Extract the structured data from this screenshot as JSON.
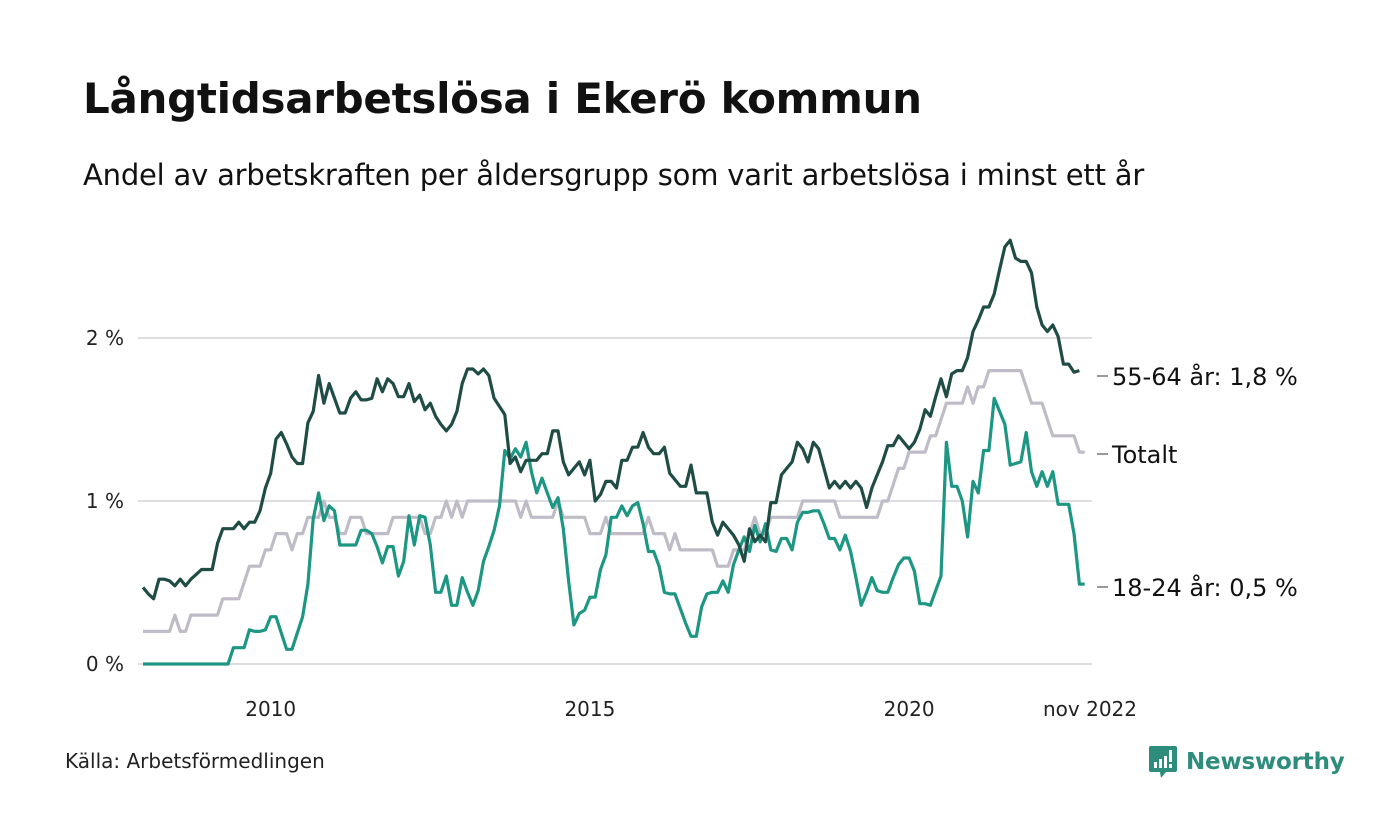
{
  "title": "Långtidsarbetslösa i Ekerö kommun",
  "subtitle": "Andel av arbetskraften per åldersgrupp som varit arbetslösa i minst ett år",
  "source": "Källa: Arbetsförmedlingen",
  "brand": {
    "name": "Newsworthy",
    "icon": "newsworthy-logo-icon",
    "color": "#2e8c7c"
  },
  "chart_data": {
    "type": "line",
    "title": "Långtidsarbetslösa i Ekerö kommun",
    "subtitle": "Andel av arbetskraften per åldersgrupp som varit arbetslösa i minst ett år",
    "xlabel": "",
    "ylabel": "",
    "x_start": "2008-01",
    "x_end": "2022-11",
    "x_frequency": "monthly",
    "xticks": [
      {
        "label": "2010",
        "x": "2010-01"
      },
      {
        "label": "2015",
        "x": "2015-01"
      },
      {
        "label": "2020",
        "x": "2020-01"
      },
      {
        "label": "nov 2022",
        "x": "2022-11"
      }
    ],
    "yticks": [
      {
        "label": "0 %",
        "value": 0
      },
      {
        "label": "1 %",
        "value": 1
      },
      {
        "label": "2 %",
        "value": 2
      }
    ],
    "ylim": [
      0,
      2.65
    ],
    "grid": true,
    "legend": "end-labels-right",
    "series": [
      {
        "name": "55-64 år",
        "end_label": "55-64 år: 1,8 %",
        "color": "#1f4d45",
        "values": [
          0.47,
          0.43,
          0.4,
          0.52,
          0.52,
          0.51,
          0.48,
          0.52,
          0.48,
          0.52,
          0.55,
          0.58,
          0.58,
          0.58,
          0.74,
          0.83,
          0.83,
          0.83,
          0.87,
          0.83,
          0.87,
          0.87,
          0.94,
          1.08,
          1.17,
          1.38,
          1.42,
          1.35,
          1.27,
          1.23,
          1.23,
          1.48,
          1.55,
          1.77,
          1.6,
          1.72,
          1.63,
          1.54,
          1.54,
          1.63,
          1.67,
          1.62,
          1.62,
          1.63,
          1.75,
          1.67,
          1.75,
          1.72,
          1.64,
          1.64,
          1.72,
          1.61,
          1.65,
          1.56,
          1.6,
          1.52,
          1.47,
          1.43,
          1.47,
          1.55,
          1.72,
          1.81,
          1.81,
          1.78,
          1.81,
          1.77,
          1.63,
          1.58,
          1.53,
          1.23,
          1.27,
          1.18,
          1.25,
          1.25,
          1.25,
          1.29,
          1.29,
          1.43,
          1.43,
          1.24,
          1.16,
          1.2,
          1.24,
          1.16,
          1.25,
          1.0,
          1.04,
          1.12,
          1.12,
          1.08,
          1.25,
          1.25,
          1.33,
          1.33,
          1.42,
          1.33,
          1.29,
          1.29,
          1.33,
          1.17,
          1.13,
          1.09,
          1.09,
          1.22,
          1.05,
          1.05,
          1.05,
          0.87,
          0.79,
          0.87,
          0.83,
          0.79,
          0.73,
          0.63,
          0.83,
          0.75,
          0.79,
          0.75,
          0.99,
          0.99,
          1.16,
          1.2,
          1.24,
          1.36,
          1.32,
          1.24,
          1.36,
          1.32,
          1.2,
          1.08,
          1.12,
          1.08,
          1.12,
          1.08,
          1.12,
          1.08,
          0.96,
          1.08,
          1.16,
          1.24,
          1.34,
          1.34,
          1.4,
          1.36,
          1.32,
          1.36,
          1.44,
          1.56,
          1.52,
          1.64,
          1.75,
          1.64,
          1.78,
          1.8,
          1.8,
          1.88,
          2.04,
          2.11,
          2.19,
          2.19,
          2.27,
          2.42,
          2.56,
          2.6,
          2.49,
          2.47,
          2.47,
          2.4,
          2.19,
          2.08,
          2.04,
          2.08,
          2.01,
          1.84,
          1.84,
          1.79,
          1.8
        ]
      },
      {
        "name": "Totalt",
        "end_label": "Totalt",
        "color": "#bfbcc8",
        "values": [
          0.2,
          0.2,
          0.2,
          0.2,
          0.2,
          0.2,
          0.3,
          0.2,
          0.2,
          0.3,
          0.3,
          0.3,
          0.3,
          0.3,
          0.3,
          0.4,
          0.4,
          0.4,
          0.4,
          0.5,
          0.6,
          0.6,
          0.6,
          0.7,
          0.7,
          0.8,
          0.8,
          0.8,
          0.7,
          0.8,
          0.8,
          0.9,
          0.9,
          0.9,
          1.0,
          0.9,
          0.9,
          0.8,
          0.8,
          0.9,
          0.9,
          0.9,
          0.8,
          0.8,
          0.8,
          0.8,
          0.8,
          0.9,
          0.9,
          0.9,
          0.9,
          0.9,
          0.9,
          0.8,
          0.8,
          0.9,
          0.9,
          1.0,
          0.9,
          1.0,
          0.9,
          1.0,
          1.0,
          1.0,
          1.0,
          1.0,
          1.0,
          1.0,
          1.0,
          1.0,
          1.0,
          0.9,
          1.0,
          0.9,
          0.9,
          0.9,
          0.9,
          0.9,
          1.0,
          0.9,
          0.9,
          0.9,
          0.9,
          0.9,
          0.8,
          0.8,
          0.8,
          0.9,
          0.8,
          0.8,
          0.8,
          0.8,
          0.8,
          0.8,
          0.8,
          0.9,
          0.8,
          0.8,
          0.8,
          0.7,
          0.8,
          0.7,
          0.7,
          0.7,
          0.7,
          0.7,
          0.7,
          0.7,
          0.6,
          0.6,
          0.6,
          0.7,
          0.7,
          0.7,
          0.8,
          0.9,
          0.8,
          0.8,
          0.9,
          0.9,
          0.9,
          0.9,
          0.9,
          0.9,
          1.0,
          1.0,
          1.0,
          1.0,
          1.0,
          1.0,
          1.0,
          0.9,
          0.9,
          0.9,
          0.9,
          0.9,
          0.9,
          0.9,
          0.9,
          1.0,
          1.0,
          1.1,
          1.2,
          1.2,
          1.3,
          1.3,
          1.3,
          1.3,
          1.4,
          1.4,
          1.5,
          1.6,
          1.6,
          1.6,
          1.6,
          1.7,
          1.6,
          1.7,
          1.7,
          1.8,
          1.8,
          1.8,
          1.8,
          1.8,
          1.8,
          1.8,
          1.7,
          1.6,
          1.6,
          1.6,
          1.5,
          1.4,
          1.4,
          1.4,
          1.4,
          1.4,
          1.3,
          1.3
        ]
      },
      {
        "name": "18-24 år",
        "end_label": "18-24 år: 0,5 %",
        "color": "#1d9683",
        "values": [
          0,
          0,
          0,
          0,
          0,
          0,
          0,
          0,
          0,
          0,
          0,
          0,
          0,
          0,
          0,
          0,
          0,
          0.1,
          0.1,
          0.1,
          0.21,
          0.2,
          0.2,
          0.21,
          0.29,
          0.29,
          0.19,
          0.09,
          0.09,
          0.19,
          0.29,
          0.49,
          0.89,
          1.05,
          0.88,
          0.97,
          0.94,
          0.73,
          0.73,
          0.73,
          0.73,
          0.82,
          0.82,
          0.8,
          0.72,
          0.62,
          0.72,
          0.72,
          0.54,
          0.63,
          0.91,
          0.73,
          0.91,
          0.9,
          0.73,
          0.44,
          0.44,
          0.54,
          0.36,
          0.36,
          0.53,
          0.44,
          0.36,
          0.45,
          0.63,
          0.72,
          0.82,
          0.97,
          1.31,
          1.26,
          1.32,
          1.27,
          1.36,
          1.18,
          1.05,
          1.14,
          1.05,
          0.96,
          1.02,
          0.83,
          0.51,
          0.24,
          0.31,
          0.33,
          0.41,
          0.41,
          0.58,
          0.67,
          0.9,
          0.9,
          0.97,
          0.91,
          0.97,
          0.99,
          0.86,
          0.69,
          0.69,
          0.6,
          0.44,
          0.43,
          0.43,
          0.34,
          0.25,
          0.17,
          0.17,
          0.35,
          0.43,
          0.44,
          0.44,
          0.51,
          0.44,
          0.61,
          0.7,
          0.78,
          0.69,
          0.85,
          0.75,
          0.86,
          0.7,
          0.69,
          0.77,
          0.77,
          0.7,
          0.87,
          0.93,
          0.93,
          0.94,
          0.94,
          0.86,
          0.77,
          0.77,
          0.7,
          0.79,
          0.69,
          0.53,
          0.36,
          0.44,
          0.53,
          0.45,
          0.44,
          0.44,
          0.53,
          0.61,
          0.65,
          0.65,
          0.57,
          0.37,
          0.37,
          0.36,
          0.45,
          0.54,
          1.36,
          1.09,
          1.09,
          1.0,
          0.78,
          1.12,
          1.05,
          1.31,
          1.31,
          1.63,
          1.55,
          1.47,
          1.22,
          1.23,
          1.24,
          1.42,
          1.18,
          1.09,
          1.18,
          1.09,
          1.18,
          0.98,
          0.98,
          0.98,
          0.8,
          0.49,
          0.49
        ]
      }
    ]
  }
}
